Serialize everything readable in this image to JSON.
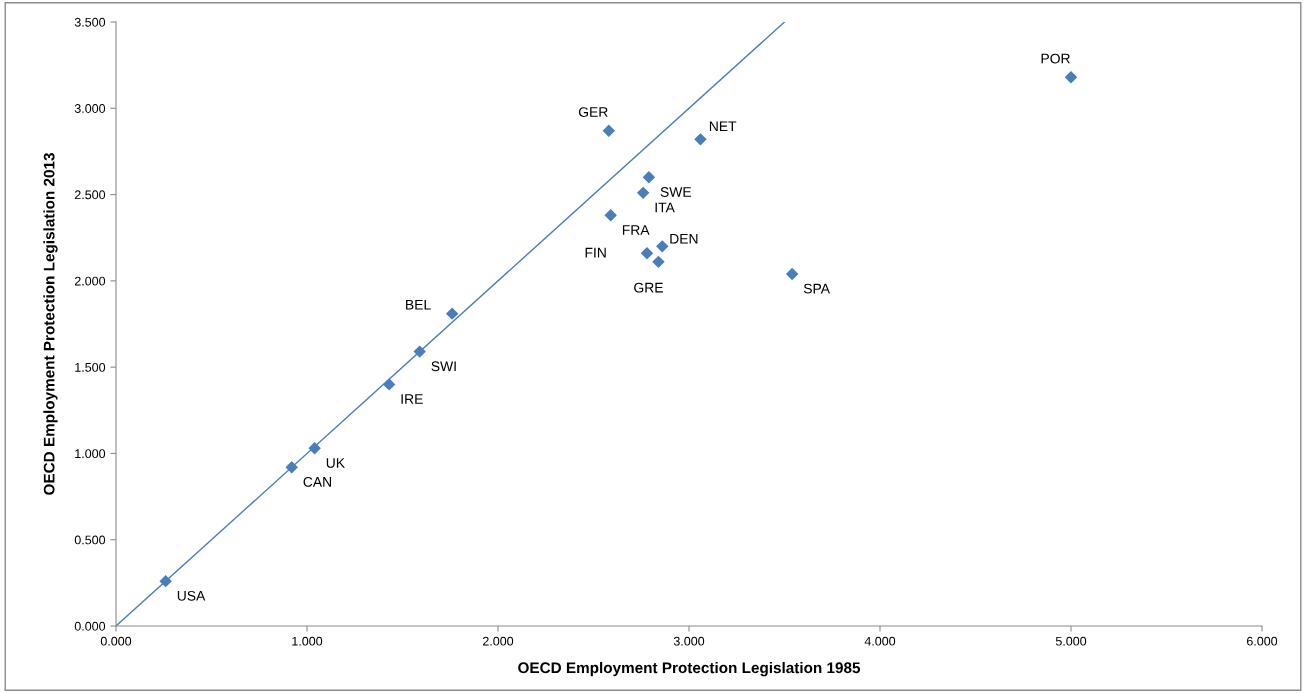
{
  "chart_data": {
    "type": "scatter",
    "xlabel": "OECD Employment Protection Legislation 1985",
    "ylabel": "OECD Employment Protection Legislation 2013",
    "xlim": [
      0,
      6
    ],
    "ylim": [
      0,
      3.5
    ],
    "xticks": [
      {
        "value": 0,
        "label": "0.000"
      },
      {
        "value": 1,
        "label": "1.000"
      },
      {
        "value": 2,
        "label": "2.000"
      },
      {
        "value": 3,
        "label": "3.000"
      },
      {
        "value": 4,
        "label": "4.000"
      },
      {
        "value": 5,
        "label": "5.000"
      },
      {
        "value": 6,
        "label": "6.000"
      }
    ],
    "yticks": [
      {
        "value": 0,
        "label": "0.000"
      },
      {
        "value": 0.5,
        "label": "0.500"
      },
      {
        "value": 1,
        "label": "1.000"
      },
      {
        "value": 1.5,
        "label": "1.500"
      },
      {
        "value": 2,
        "label": "2.000"
      },
      {
        "value": 2.5,
        "label": "2.500"
      },
      {
        "value": 3,
        "label": "3.000"
      },
      {
        "value": 3.5,
        "label": "3.500"
      }
    ],
    "grid": false,
    "legend": false,
    "marker": "diamond",
    "series": [
      {
        "color": "#4a7ebb",
        "x": [
          0.26,
          0.92,
          1.04,
          1.43,
          1.59,
          1.76,
          2.58,
          3.06,
          2.79,
          2.76,
          2.59,
          2.78,
          2.86,
          2.84,
          3.54,
          5.0
        ],
        "values": [
          0.26,
          0.92,
          1.03,
          1.4,
          1.59,
          1.81,
          2.87,
          2.82,
          2.6,
          2.51,
          2.38,
          2.16,
          2.2,
          2.11,
          2.04,
          3.18
        ]
      },
      {
        "type": "line",
        "color": "#4a7ebb",
        "x": [
          0,
          3.5
        ],
        "values": [
          0,
          3.5
        ],
        "marker": "none"
      }
    ],
    "annotations": [
      {
        "text": "USA",
        "x": 0.26,
        "y": 0.26
      },
      {
        "text": "CAN",
        "x": 0.92,
        "y": 0.92
      },
      {
        "text": "UK",
        "x": 1.04,
        "y": 1.03
      },
      {
        "text": "IRE",
        "x": 1.43,
        "y": 1.4
      },
      {
        "text": "SWI",
        "x": 1.59,
        "y": 1.59
      },
      {
        "text": "BEL",
        "x": 1.76,
        "y": 1.81
      },
      {
        "text": "GER",
        "x": 2.58,
        "y": 2.87
      },
      {
        "text": "NET",
        "x": 3.06,
        "y": 2.82
      },
      {
        "text": "SWE",
        "x": 2.79,
        "y": 2.6
      },
      {
        "text": "ITA",
        "x": 2.76,
        "y": 2.51
      },
      {
        "text": "FRA",
        "x": 2.59,
        "y": 2.38
      },
      {
        "text": "FIN",
        "x": 2.78,
        "y": 2.16
      },
      {
        "text": "DEN",
        "x": 2.86,
        "y": 2.2
      },
      {
        "text": "GRE",
        "x": 2.84,
        "y": 2.11
      },
      {
        "text": "SPA",
        "x": 3.54,
        "y": 2.04
      },
      {
        "text": "POR",
        "x": 5.0,
        "y": 3.18
      }
    ]
  }
}
